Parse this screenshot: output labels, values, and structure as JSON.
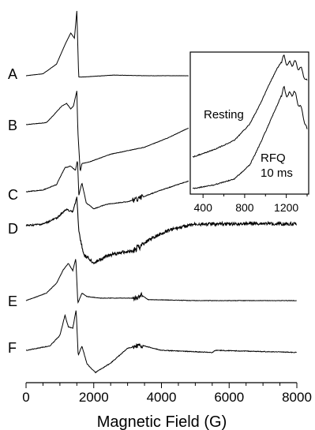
{
  "chart_data": [
    {
      "type": "line",
      "xlabel": "Magnetic Field (G)",
      "ylabel": "",
      "xlim": [
        0,
        8000
      ],
      "x_ticks": [
        "0",
        "2000",
        "4000",
        "6000",
        "8000"
      ],
      "y_ticks_shown": false,
      "grid": false,
      "series": [
        {
          "name": "A",
          "x_range": [
            0,
            4800
          ],
          "points": [
            [
              0,
              0
            ],
            [
              500,
              0.03
            ],
            [
              900,
              0.18
            ],
            [
              1150,
              0.48
            ],
            [
              1320,
              0.66
            ],
            [
              1430,
              0.58
            ],
            [
              1500,
              1.0
            ],
            [
              1555,
              -0.02
            ],
            [
              1650,
              -0.02
            ],
            [
              2600,
              0.01
            ],
            [
              3500,
              0.0
            ],
            [
              4800,
              0.0
            ]
          ]
        },
        {
          "name": "B",
          "x_range": [
            0,
            4800
          ],
          "points": [
            [
              0,
              0
            ],
            [
              600,
              0.05
            ],
            [
              800,
              0.22
            ],
            [
              1050,
              0.45
            ],
            [
              1200,
              0.52
            ],
            [
              1320,
              0.38
            ],
            [
              1400,
              0.45
            ],
            [
              1500,
              0.82
            ],
            [
              1530,
              -0.15
            ],
            [
              1600,
              -1.15
            ],
            [
              1650,
              -0.95
            ],
            [
              1900,
              -0.9
            ],
            [
              2500,
              -0.72
            ],
            [
              3500,
              -0.55
            ],
            [
              4200,
              -0.32
            ],
            [
              4800,
              -0.08
            ]
          ]
        },
        {
          "name": "C",
          "x_range": [
            0,
            4800
          ],
          "points": [
            [
              0,
              0
            ],
            [
              500,
              0.05
            ],
            [
              900,
              0.2
            ],
            [
              1150,
              0.68
            ],
            [
              1320,
              0.72
            ],
            [
              1460,
              0.6
            ],
            [
              1520,
              0.9
            ],
            [
              1560,
              -0.1
            ],
            [
              1650,
              0.25
            ],
            [
              1780,
              -0.32
            ],
            [
              2000,
              -0.48
            ],
            [
              2400,
              -0.35
            ],
            [
              3000,
              -0.28
            ],
            [
              3300,
              -0.2
            ],
            [
              4000,
              0.05
            ],
            [
              4800,
              0.3
            ]
          ]
        },
        {
          "name": "D",
          "x_range": [
            0,
            8000
          ],
          "points": [
            [
              0,
              0
            ],
            [
              500,
              0.05
            ],
            [
              900,
              0.25
            ],
            [
              1200,
              0.55
            ],
            [
              1380,
              0.45
            ],
            [
              1500,
              0.95
            ],
            [
              1560,
              -0.2
            ],
            [
              1700,
              -0.95
            ],
            [
              2000,
              -1.25
            ],
            [
              2400,
              -1.0
            ],
            [
              2800,
              -0.9
            ],
            [
              3200,
              -0.82
            ],
            [
              3600,
              -0.5
            ],
            [
              4200,
              -0.15
            ],
            [
              5000,
              0.05
            ],
            [
              6000,
              0.06
            ],
            [
              7000,
              0.07
            ],
            [
              8000,
              0.06
            ]
          ]
        },
        {
          "name": "E",
          "x_range": [
            0,
            8000
          ],
          "points": [
            [
              0,
              0
            ],
            [
              600,
              0.15
            ],
            [
              900,
              0.35
            ],
            [
              1100,
              0.62
            ],
            [
              1250,
              0.75
            ],
            [
              1380,
              0.6
            ],
            [
              1470,
              0.85
            ],
            [
              1530,
              -0.05
            ],
            [
              1650,
              0.15
            ],
            [
              1800,
              0.08
            ],
            [
              2200,
              0.05
            ],
            [
              3300,
              0.05
            ],
            [
              3400,
              0.12
            ],
            [
              3600,
              0.02
            ],
            [
              5000,
              0.0
            ],
            [
              8000,
              0.0
            ]
          ]
        },
        {
          "name": "F",
          "x_range": [
            0,
            8000
          ],
          "points": [
            [
              0,
              0
            ],
            [
              700,
              0.1
            ],
            [
              1000,
              0.35
            ],
            [
              1150,
              0.82
            ],
            [
              1250,
              0.55
            ],
            [
              1380,
              0.52
            ],
            [
              1480,
              0.95
            ],
            [
              1540,
              -0.12
            ],
            [
              1650,
              0.1
            ],
            [
              1800,
              -0.32
            ],
            [
              2050,
              -0.52
            ],
            [
              2500,
              -0.3
            ],
            [
              3000,
              0.05
            ],
            [
              3400,
              0.12
            ],
            [
              4000,
              0.0
            ],
            [
              5500,
              -0.05
            ],
            [
              5600,
              0.0
            ],
            [
              8000,
              -0.05
            ]
          ]
        }
      ]
    },
    {
      "type": "line",
      "title": "",
      "xlabel": "",
      "xlim": [
        300,
        1400
      ],
      "x_ticks": [
        "400",
        "800",
        "1200"
      ],
      "grid": false,
      "series": [
        {
          "name": "Resting",
          "points": [
            [
              300,
              0.1
            ],
            [
              500,
              0.16
            ],
            [
              700,
              0.24
            ],
            [
              850,
              0.38
            ],
            [
              950,
              0.55
            ],
            [
              1050,
              0.74
            ],
            [
              1120,
              0.86
            ],
            [
              1180,
              0.94
            ],
            [
              1220,
              0.88
            ],
            [
              1270,
              0.9
            ],
            [
              1320,
              0.86
            ],
            [
              1370,
              0.8
            ],
            [
              1400,
              0.72
            ]
          ]
        },
        {
          "name": "RFQ 10 ms",
          "points": [
            [
              300,
              0.0
            ],
            [
              500,
              0.03
            ],
            [
              700,
              0.08
            ],
            [
              850,
              0.2
            ],
            [
              950,
              0.38
            ],
            [
              1050,
              0.58
            ],
            [
              1120,
              0.72
            ],
            [
              1180,
              0.84
            ],
            [
              1220,
              0.78
            ],
            [
              1270,
              0.82
            ],
            [
              1320,
              0.72
            ],
            [
              1370,
              0.6
            ],
            [
              1400,
              0.48
            ]
          ]
        }
      ],
      "annotations": [
        "Resting",
        "RFQ",
        "10 ms"
      ]
    }
  ]
}
